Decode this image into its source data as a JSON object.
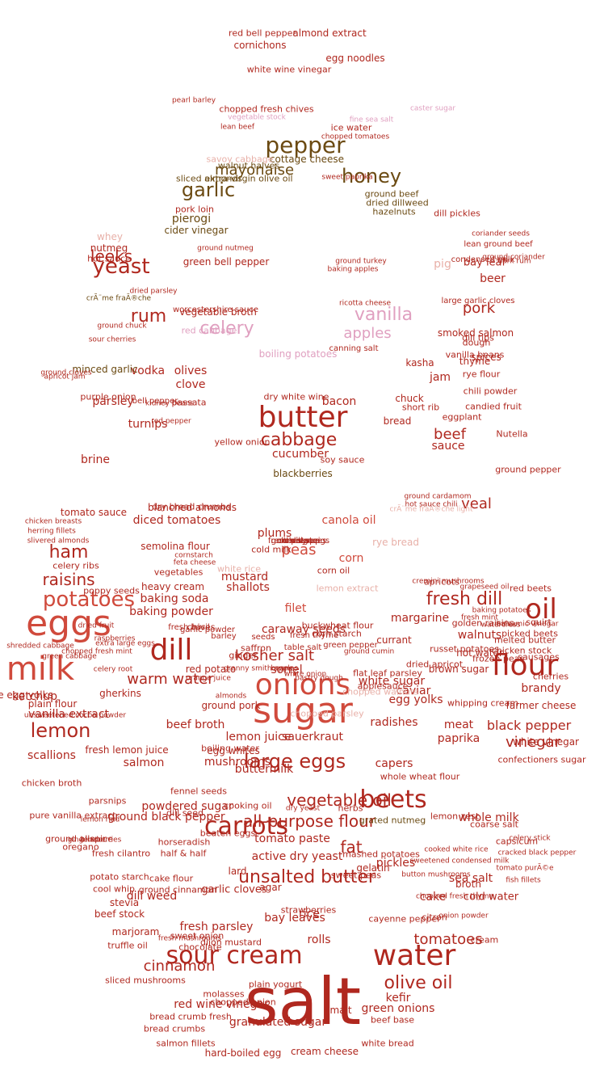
{
  "colors": {
    "red": "#b0281f",
    "dark_red": "#9b1c1c",
    "salmon": "#d04a3c",
    "olive": "#6b4a12",
    "pink": "#e0a0c0",
    "light": "#e8b0a8"
  },
  "words": [
    {
      "t": "salt",
      "c": "red"
    },
    {
      "t": "sugar",
      "c": "salmon"
    },
    {
      "t": "eggs",
      "c": "salmon"
    },
    {
      "t": "milk",
      "c": "salmon"
    },
    {
      "t": "butter",
      "c": "red"
    },
    {
      "t": "water",
      "c": "red"
    },
    {
      "t": "onions",
      "c": "salmon"
    },
    {
      "t": "flour",
      "c": "red"
    },
    {
      "t": "dill",
      "c": "red"
    },
    {
      "t": "oil",
      "c": "red"
    },
    {
      "t": "sour cream",
      "c": "red"
    },
    {
      "t": "carrots",
      "c": "red"
    },
    {
      "t": "beets",
      "c": "red"
    },
    {
      "t": "pepper",
      "c": "olive"
    },
    {
      "t": "yeast",
      "c": "red"
    },
    {
      "t": "potatoes",
      "c": "salmon"
    },
    {
      "t": "lemon",
      "c": "red"
    },
    {
      "t": "large eggs",
      "c": "red"
    },
    {
      "t": "garlic",
      "c": "olive"
    },
    {
      "t": "honey",
      "c": "olive"
    },
    {
      "t": "vanilla",
      "c": "pink"
    },
    {
      "t": "celery",
      "c": "pink"
    },
    {
      "t": "fresh dill",
      "c": "red"
    },
    {
      "t": "unsalted butter",
      "c": "red"
    },
    {
      "t": "olive oil",
      "c": "red"
    },
    {
      "t": "cabbage",
      "c": "red"
    },
    {
      "t": "ham",
      "c": "red"
    },
    {
      "t": "raisins",
      "c": "red"
    },
    {
      "t": "vegetable oil",
      "c": "red"
    },
    {
      "t": "all-purpose flour",
      "c": "red"
    },
    {
      "t": "rum",
      "c": "red"
    },
    {
      "t": "apples",
      "c": "pink"
    },
    {
      "t": "leeks",
      "c": "red"
    },
    {
      "t": "mayonaise",
      "c": "olive"
    },
    {
      "t": "vinegar",
      "c": "red"
    },
    {
      "t": "tomatoes",
      "c": "red"
    },
    {
      "t": "cinnamon",
      "c": "red"
    },
    {
      "t": "warm water",
      "c": "red"
    },
    {
      "t": "kosher salt",
      "c": "red"
    },
    {
      "t": "black pepper",
      "c": "red"
    },
    {
      "t": "pork",
      "c": "red"
    },
    {
      "t": "veal",
      "c": "red"
    },
    {
      "t": "beef",
      "c": "red"
    },
    {
      "t": "peas",
      "c": "salmon"
    },
    {
      "t": "fat",
      "c": "red"
    },
    {
      "t": "baking soda",
      "c": "red"
    },
    {
      "t": "baking powder",
      "c": "red"
    },
    {
      "t": "mushrooms",
      "c": "red"
    },
    {
      "t": "capers",
      "c": "red"
    },
    {
      "t": "vodka",
      "c": "red"
    },
    {
      "t": "olives",
      "c": "red"
    },
    {
      "t": "clove",
      "c": "red"
    },
    {
      "t": "parsley",
      "c": "red"
    },
    {
      "t": "turnips",
      "c": "red"
    },
    {
      "t": "brine",
      "c": "red"
    },
    {
      "t": "jam",
      "c": "red"
    },
    {
      "t": "thyme",
      "c": "red"
    },
    {
      "t": "kasha",
      "c": "red"
    },
    {
      "t": "chuck",
      "c": "red"
    },
    {
      "t": "bacon",
      "c": "red"
    },
    {
      "t": "bread",
      "c": "red"
    },
    {
      "t": "sauce",
      "c": "red"
    },
    {
      "t": "cucumber",
      "c": "red"
    },
    {
      "t": "pierogi",
      "c": "olive"
    },
    {
      "t": "cider vinegar",
      "c": "olive"
    },
    {
      "t": "cottage cheese",
      "c": "olive"
    },
    {
      "t": "ground beef",
      "c": "olive"
    },
    {
      "t": "dried dillweed",
      "c": "olive"
    },
    {
      "t": "hazelnuts",
      "c": "olive"
    },
    {
      "t": "chopped fresh chives",
      "c": "red"
    },
    {
      "t": "bay leaf",
      "c": "red"
    },
    {
      "t": "beer",
      "c": "red"
    },
    {
      "t": "pig",
      "c": "light"
    },
    {
      "t": "canola oil",
      "c": "salmon"
    },
    {
      "t": "corn",
      "c": "salmon"
    },
    {
      "t": "filet",
      "c": "salmon"
    },
    {
      "t": "shallots",
      "c": "red"
    },
    {
      "t": "mustard",
      "c": "red"
    },
    {
      "t": "heavy cream",
      "c": "red"
    },
    {
      "t": "sorrel",
      "c": "red"
    },
    {
      "t": "ketchup",
      "c": "red"
    },
    {
      "t": "scallions",
      "c": "red"
    },
    {
      "t": "salmon",
      "c": "red"
    },
    {
      "t": "lemon juice",
      "c": "red"
    },
    {
      "t": "beef broth",
      "c": "red"
    },
    {
      "t": "sauerkraut",
      "c": "red"
    },
    {
      "t": "radishes",
      "c": "red"
    },
    {
      "t": "egg yolks",
      "c": "red"
    },
    {
      "t": "white sugar",
      "c": "red"
    },
    {
      "t": "caviar",
      "c": "red"
    },
    {
      "t": "meat",
      "c": "red"
    },
    {
      "t": "paprika",
      "c": "red"
    },
    {
      "t": "brandy",
      "c": "red"
    },
    {
      "t": "walnuts",
      "c": "red"
    },
    {
      "t": "whole milk",
      "c": "red"
    },
    {
      "t": "sea salt",
      "c": "red"
    },
    {
      "t": "pickles",
      "c": "red"
    },
    {
      "t": "cold water",
      "c": "red"
    },
    {
      "t": "cake",
      "c": "red"
    },
    {
      "t": "rice",
      "c": "red"
    },
    {
      "t": "rolls",
      "c": "red"
    },
    {
      "t": "kefir",
      "c": "red"
    },
    {
      "t": "green onions",
      "c": "red"
    },
    {
      "t": "dill weed",
      "c": "red"
    },
    {
      "t": "bay leaves",
      "c": "red"
    },
    {
      "t": "fresh parsley",
      "c": "red"
    },
    {
      "t": "red wine vinegar",
      "c": "red"
    },
    {
      "t": "granulated sugar",
      "c": "red"
    },
    {
      "t": "active dry yeast",
      "c": "red"
    },
    {
      "t": "tomato paste",
      "c": "red"
    },
    {
      "t": "caraway seeds",
      "c": "red"
    },
    {
      "t": "powdered sugar",
      "c": "red"
    },
    {
      "t": "ground black pepper",
      "c": "red"
    },
    {
      "t": "buttermilk",
      "c": "red"
    },
    {
      "t": "vanilla extract",
      "c": "red"
    },
    {
      "t": "plain flour",
      "c": "red"
    },
    {
      "t": "large egg yolks",
      "c": "red"
    },
    {
      "t": "gherkins",
      "c": "red"
    },
    {
      "t": "celery ribs",
      "c": "red"
    },
    {
      "t": "diced tomatoes",
      "c": "red"
    },
    {
      "t": "plums",
      "c": "red"
    },
    {
      "t": "margarine",
      "c": "red"
    },
    {
      "t": "garlic cloves",
      "c": "red"
    },
    {
      "t": "lard",
      "c": "red"
    },
    {
      "t": "agar",
      "c": "red"
    },
    {
      "t": "malt",
      "c": "red"
    },
    {
      "t": "cream cheese",
      "c": "red"
    },
    {
      "t": "hard-boiled egg",
      "c": "red"
    },
    {
      "t": "stevia",
      "c": "red"
    },
    {
      "t": "beef stock",
      "c": "red"
    },
    {
      "t": "marjoram",
      "c": "red"
    },
    {
      "t": "cream",
      "c": "red"
    },
    {
      "t": "coarse salt",
      "c": "red"
    },
    {
      "t": "broth",
      "c": "red"
    },
    {
      "t": "dill pickles",
      "c": "red"
    },
    {
      "t": "smoked salmon",
      "c": "red"
    },
    {
      "t": "dill tips",
      "c": "red"
    },
    {
      "t": "dough",
      "c": "red"
    },
    {
      "t": "spices",
      "c": "red"
    },
    {
      "t": "vanilla beans",
      "c": "red"
    },
    {
      "t": "whey",
      "c": "light"
    },
    {
      "t": "nutmeg",
      "c": "red"
    },
    {
      "t": "hot sauce",
      "c": "red"
    },
    {
      "t": "vegetable broth",
      "c": "red"
    },
    {
      "t": "red cabbage",
      "c": "pink"
    },
    {
      "t": "boiling potatoes",
      "c": "pink"
    },
    {
      "t": "green bell pepper",
      "c": "red"
    },
    {
      "t": "minced garlic",
      "c": "olive"
    },
    {
      "t": "purple onion",
      "c": "red"
    },
    {
      "t": "red bell pepper",
      "c": "red"
    },
    {
      "t": "almond extract",
      "c": "red"
    },
    {
      "t": "cornichons",
      "c": "red"
    },
    {
      "t": "egg noodles",
      "c": "red"
    },
    {
      "t": "white wine vinegar",
      "c": "red"
    },
    {
      "t": "ice water",
      "c": "red"
    },
    {
      "t": "savoy cabbage",
      "c": "light"
    },
    {
      "t": "walnut halves",
      "c": "olive"
    },
    {
      "t": "extra-virgin olive oil",
      "c": "olive"
    },
    {
      "t": "sliced almonds",
      "c": "olive"
    },
    {
      "t": "blackberries",
      "c": "olive"
    },
    {
      "t": "soy sauce",
      "c": "red"
    },
    {
      "t": "rye bread",
      "c": "light"
    },
    {
      "t": "blanched almonds",
      "c": "red"
    },
    {
      "t": "tomato sauce",
      "c": "red"
    },
    {
      "t": "dry bread crumbs",
      "c": "red"
    },
    {
      "t": "semolina flour",
      "c": "red"
    },
    {
      "t": "cold milk",
      "c": "red"
    },
    {
      "t": "corn oil",
      "c": "red"
    },
    {
      "t": "lemon extract",
      "c": "light"
    },
    {
      "t": "white rice",
      "c": "light"
    },
    {
      "t": "poppy seeds",
      "c": "red"
    },
    {
      "t": "chives",
      "c": "red"
    },
    {
      "t": "red potato",
      "c": "red"
    },
    {
      "t": "ground pork",
      "c": "red"
    },
    {
      "t": "egg whites",
      "c": "red"
    },
    {
      "t": "fresh lemon juice",
      "c": "red"
    },
    {
      "t": "chicken broth",
      "c": "red"
    },
    {
      "t": "parsnips",
      "c": "red"
    },
    {
      "t": "horseradish",
      "c": "red"
    },
    {
      "t": "half & half",
      "c": "red"
    },
    {
      "t": "cake flour",
      "c": "red"
    },
    {
      "t": "ground cinnamon",
      "c": "red"
    },
    {
      "t": "mashed potatoes",
      "c": "red"
    },
    {
      "t": "gelatin",
      "c": "red"
    },
    {
      "t": "sweet peas",
      "c": "red"
    },
    {
      "t": "red beets",
      "c": "red"
    },
    {
      "t": "squirt",
      "c": "red"
    },
    {
      "t": "chicken stock",
      "c": "red"
    },
    {
      "t": "golden raisins",
      "c": "red"
    },
    {
      "t": "hot water",
      "c": "red"
    },
    {
      "t": "brown sugar",
      "c": "red"
    },
    {
      "t": "russet potatoes",
      "c": "red"
    },
    {
      "t": "farmer cheese",
      "c": "red"
    },
    {
      "t": "white vinegar",
      "c": "red"
    },
    {
      "t": "confectioners sugar",
      "c": "red"
    },
    {
      "t": "lemon zest",
      "c": "red"
    },
    {
      "t": "herbs",
      "c": "red"
    },
    {
      "t": "dried apricot",
      "c": "red"
    },
    {
      "t": "buckwheat flour",
      "c": "red"
    },
    {
      "t": "corn starch",
      "c": "red"
    },
    {
      "t": "currant",
      "c": "red"
    },
    {
      "t": "cayenne pepper",
      "c": "red"
    },
    {
      "t": "dijon mustard",
      "c": "red"
    },
    {
      "t": "sweet onion",
      "c": "red"
    },
    {
      "t": "chocolate",
      "c": "red"
    },
    {
      "t": "molasses",
      "c": "red"
    },
    {
      "t": "chopped onion",
      "c": "red"
    },
    {
      "t": "plain yogurt",
      "c": "red"
    },
    {
      "t": "bread crumb fresh",
      "c": "red"
    },
    {
      "t": "bread crumbs",
      "c": "red"
    },
    {
      "t": "salmon fillets",
      "c": "red"
    },
    {
      "t": "white bread",
      "c": "red"
    },
    {
      "t": "beef base",
      "c": "red"
    },
    {
      "t": "sliced mushrooms",
      "c": "red"
    },
    {
      "t": "ground allspice",
      "c": "red"
    },
    {
      "t": "oregano",
      "c": "red"
    },
    {
      "t": "fresh cilantro",
      "c": "red"
    },
    {
      "t": "potato starch",
      "c": "red"
    },
    {
      "t": "cool whip",
      "c": "red"
    },
    {
      "t": "truffle oil",
      "c": "red"
    },
    {
      "t": "vegetables",
      "c": "red"
    },
    {
      "t": "pure vanilla extract",
      "c": "red"
    },
    {
      "t": "short rib",
      "c": "red"
    },
    {
      "t": "eggplant",
      "c": "red"
    },
    {
      "t": "ground pepper",
      "c": "red"
    },
    {
      "t": "Nutella",
      "c": "red"
    },
    {
      "t": "candied fruit",
      "c": "red"
    },
    {
      "t": "chili powder",
      "c": "red"
    },
    {
      "t": "rye flour",
      "c": "red"
    },
    {
      "t": "passata",
      "c": "red"
    },
    {
      "t": "yellow onion",
      "c": "red"
    },
    {
      "t": "dry white wine",
      "c": "red"
    },
    {
      "t": "pork loin",
      "c": "red"
    },
    {
      "t": "capsicum",
      "c": "red"
    },
    {
      "t": "fennel seeds",
      "c": "red"
    },
    {
      "t": "dill seed",
      "c": "red"
    },
    {
      "t": "beaten eggs",
      "c": "red"
    },
    {
      "t": "grated nutmeg",
      "c": "olive"
    },
    {
      "t": "whole wheat flour",
      "c": "red"
    },
    {
      "t": "cooking oil",
      "c": "red"
    },
    {
      "t": "flat leaf parsley",
      "c": "red"
    },
    {
      "t": "applesauce",
      "c": "red"
    },
    {
      "t": "chopped walnuts",
      "c": "light"
    },
    {
      "t": "chopped parsley",
      "c": "light"
    },
    {
      "t": "boiling water",
      "c": "red"
    },
    {
      "t": "whipping cream",
      "c": "red"
    },
    {
      "t": "cherries",
      "c": "red"
    },
    {
      "t": "sausages",
      "c": "red"
    },
    {
      "t": "picked beets",
      "c": "red"
    },
    {
      "t": "melted butter",
      "c": "red"
    },
    {
      "t": "frozen peas",
      "c": "red"
    },
    {
      "t": "citron",
      "c": "red"
    },
    {
      "t": "strawberries",
      "c": "red"
    },
    {
      "t": "ginger",
      "c": "red"
    },
    {
      "t": "saffron",
      "c": "red"
    },
    {
      "t": "apricots",
      "c": "red"
    },
    {
      "t": "raspberries",
      "c": "red"
    },
    {
      "t": "shredded cabbage",
      "c": "red"
    },
    {
      "t": "green cabbage",
      "c": "red"
    },
    {
      "t": "blueberries",
      "c": "red"
    },
    {
      "t": "gingerroot",
      "c": "red"
    },
    {
      "t": "celery root",
      "c": "red"
    },
    {
      "t": "dried fruit",
      "c": "red"
    },
    {
      "t": "lemon rind",
      "c": "red"
    },
    {
      "t": "large garlic cloves",
      "c": "red"
    },
    {
      "t": "condensed milk",
      "c": "red"
    },
    {
      "t": "lean ground beef",
      "c": "red"
    },
    {
      "t": "dried parsley",
      "c": "red"
    },
    {
      "t": "apricot jam",
      "c": "red"
    },
    {
      "t": "ground cloves",
      "c": "red"
    },
    {
      "t": "barley",
      "c": "red"
    },
    {
      "t": "seeds",
      "c": "red"
    },
    {
      "t": "fresh basil",
      "c": "red"
    },
    {
      "t": "garlic powder",
      "c": "red"
    },
    {
      "t": "fresh thyme",
      "c": "red"
    },
    {
      "t": "table salt",
      "c": "red"
    },
    {
      "t": "green pepper",
      "c": "red"
    },
    {
      "t": "ground cumin",
      "c": "red"
    },
    {
      "t": "orange juice",
      "c": "red"
    },
    {
      "t": "granny smith apples",
      "c": "red"
    },
    {
      "t": "beans",
      "c": "red"
    },
    {
      "t": "almonds",
      "c": "red"
    },
    {
      "t": "kidney beans",
      "c": "red"
    },
    {
      "t": "bell pepper",
      "c": "red"
    },
    {
      "t": "red pepper",
      "c": "red"
    },
    {
      "t": "worcestershire sauce",
      "c": "red"
    },
    {
      "t": "ricotta cheese",
      "c": "red"
    },
    {
      "t": "canning salt",
      "c": "red"
    },
    {
      "t": "ground nutmeg",
      "c": "red"
    },
    {
      "t": "ground turkey",
      "c": "red"
    },
    {
      "t": "baking apples",
      "c": "red"
    },
    {
      "t": "pearl barley",
      "c": "red"
    },
    {
      "t": "vegetable stock",
      "c": "pink"
    },
    {
      "t": "caster sugar",
      "c": "pink"
    },
    {
      "t": "fine sea salt",
      "c": "pink"
    },
    {
      "t": "lean beef",
      "c": "red"
    },
    {
      "t": "sweet paprika",
      "c": "red"
    },
    {
      "t": "chopped tomatoes",
      "c": "red"
    },
    {
      "t": "ground chuck",
      "c": "red"
    },
    {
      "t": "sour cherries",
      "c": "red"
    },
    {
      "t": "crÃ¨me fraÃ®che",
      "c": "olive"
    },
    {
      "t": "fresh mint",
      "c": "red"
    },
    {
      "t": "baking potatoes",
      "c": "red"
    },
    {
      "t": "watercress",
      "c": "red"
    },
    {
      "t": "balsamic vinegar",
      "c": "red"
    },
    {
      "t": "celery stick",
      "c": "red"
    },
    {
      "t": "cracked black pepper",
      "c": "red"
    },
    {
      "t": "tomato purÃ©e",
      "c": "red"
    },
    {
      "t": "fish fillets",
      "c": "red"
    },
    {
      "t": "dry yeast",
      "c": "red"
    },
    {
      "t": "ground cardamom",
      "c": "red"
    },
    {
      "t": "crÃ¨me fraÃ®che light",
      "c": "light"
    },
    {
      "t": "hot sauce chili",
      "c": "red"
    },
    {
      "t": "herring fillets",
      "c": "red"
    },
    {
      "t": "chicken breasts",
      "c": "red"
    },
    {
      "t": "cornstarch",
      "c": "red"
    },
    {
      "t": "feta cheese",
      "c": "red"
    },
    {
      "t": "slivered almonds",
      "c": "red"
    },
    {
      "t": "chopped fresh mint",
      "c": "red"
    },
    {
      "t": "unsweetened cocoa powder",
      "c": "red"
    },
    {
      "t": "extra large eggs",
      "c": "red"
    },
    {
      "t": "fresh mushrooms",
      "c": "red"
    },
    {
      "t": "cremini mushrooms",
      "c": "red"
    },
    {
      "t": "cooked white rice",
      "c": "red"
    },
    {
      "t": "sweetened condensed milk",
      "c": "red"
    },
    {
      "t": "chopped fresh thyme",
      "c": "red"
    },
    {
      "t": "onion powder",
      "c": "red"
    },
    {
      "t": "button mushrooms",
      "c": "red"
    },
    {
      "t": "ground coriander",
      "c": "red"
    },
    {
      "t": "dark rum",
      "c": "red"
    },
    {
      "t": "coriander seeds",
      "c": "red"
    },
    {
      "t": "grapeseed oil",
      "c": "red"
    },
    {
      "t": "white onion",
      "c": "red"
    },
    {
      "t": "pastry dough",
      "c": "red"
    },
    {
      "t": "fresh dill sprigs",
      "c": "red"
    },
    {
      "t": "meringue",
      "c": "red"
    },
    {
      "t": "cheese",
      "c": "red"
    },
    {
      "t": "corn syrup",
      "c": "red"
    },
    {
      "t": "gold potatoes",
      "c": "red"
    }
  ]
}
